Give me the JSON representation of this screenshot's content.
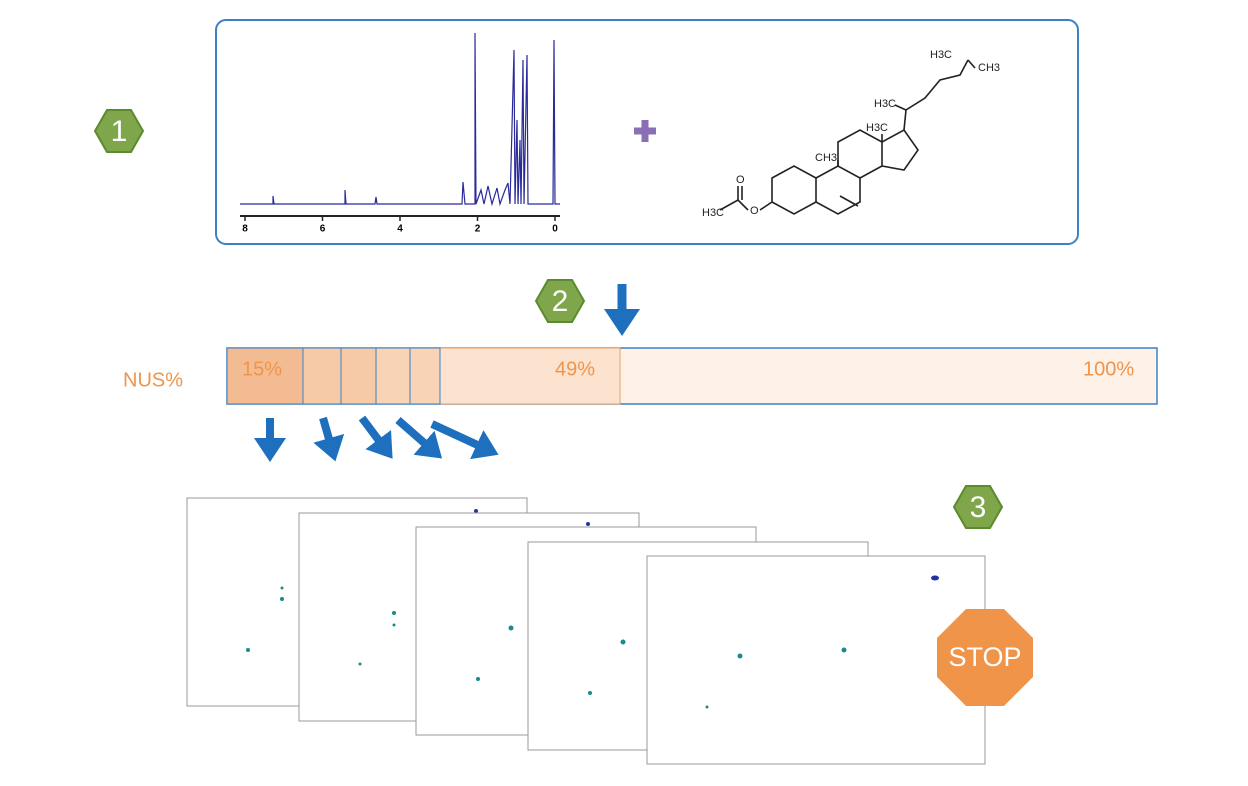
{
  "steps": {
    "one": "1",
    "two": "2",
    "three": "3"
  },
  "spectrum": {
    "axis_labels": [
      "8",
      "6",
      "4",
      "2",
      "0"
    ]
  },
  "molecule": {
    "labels": [
      "H3C",
      "CH3",
      "H3C",
      "H3C",
      "CH3",
      "O",
      "H3C",
      "O"
    ]
  },
  "nus_bar": {
    "label": "NUS%",
    "low": "15%",
    "mid": "49%",
    "high": "100%"
  },
  "stop": "STOP"
}
